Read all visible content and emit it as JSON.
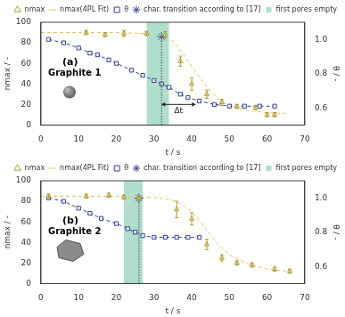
{
  "chart_data": [
    {
      "type": "scatter",
      "title": "(a)",
      "subtitle": "Graphite 1",
      "x_label": "t / s",
      "y_label": "nmax / -",
      "y2_label": "θ / -",
      "xlim": [
        0,
        70
      ],
      "xticks": [
        0,
        10,
        20,
        30,
        40,
        50,
        60,
        70
      ],
      "ylim": [
        0,
        100
      ],
      "yticks": [
        0,
        20,
        40,
        60,
        80,
        100
      ],
      "y2lim": [
        0.5,
        1.1
      ],
      "y2ticks": [
        0.6,
        0.8,
        {
          "value": 1,
          "label": "1.0"
        }
      ],
      "grid": false,
      "legend": "upper right",
      "series": [
        {
          "name": "nmax",
          "color": "#b09a30",
          "marker": "triangle",
          "line_style": "none",
          "x": [
            12,
            17,
            22,
            28,
            33,
            37,
            40,
            44,
            48,
            52,
            57,
            60,
            62
          ],
          "values": [
            90,
            88,
            89,
            89,
            88,
            62,
            40,
            30,
            22,
            18,
            17,
            10,
            10
          ],
          "errors": [
            2,
            2,
            3,
            2,
            3,
            5,
            6,
            4,
            3,
            2,
            2,
            2,
            2
          ]
        },
        {
          "name": "nmax(4PL Fit)",
          "color": "#e2c060",
          "marker": "none",
          "line_style": "dashed",
          "x": [
            0,
            10,
            20,
            28,
            32,
            35,
            38,
            41,
            44,
            47,
            50,
            55,
            60,
            65
          ],
          "values": [
            90,
            90,
            90,
            89,
            87,
            82,
            68,
            52,
            37,
            26,
            18,
            14,
            12,
            11
          ]
        },
        {
          "name": "θ",
          "color": "#34428e",
          "marker": "square",
          "line_style": "dashed",
          "axis": "y2",
          "x": [
            2,
            6,
            10,
            13,
            15,
            18,
            20,
            24,
            27,
            30,
            32,
            34,
            37,
            39,
            42,
            46,
            50,
            54,
            58,
            62
          ],
          "values": [
            1.0,
            0.98,
            0.95,
            0.92,
            0.91,
            0.88,
            0.86,
            0.82,
            0.79,
            0.76,
            0.74,
            0.72,
            0.68,
            0.66,
            0.64,
            0.62,
            0.61,
            0.61,
            0.61,
            0.61
          ]
        },
        {
          "name": "first pores empty",
          "color": "#8fd0b8",
          "type": "band",
          "x": [
            28,
            34
          ]
        },
        {
          "name": "char. transition according to [17]",
          "color": "#34428e",
          "marker": "star",
          "line_style": "dotted",
          "x": [
            32
          ],
          "values": [
            86
          ]
        }
      ],
      "annotations": [
        {
          "text": "Δt",
          "x": [
            32,
            41
          ],
          "y": 20
        }
      ]
    },
    {
      "type": "scatter",
      "title": "(b)",
      "subtitle": "Graphite 2",
      "x_label": "t / s",
      "y_label": "nmax / -",
      "y2_label": "θ / -",
      "xlim": [
        0,
        70
      ],
      "xticks": [
        0,
        10,
        20,
        30,
        40,
        50,
        60,
        70
      ],
      "ylim": [
        0,
        100
      ],
      "yticks": [
        0,
        20,
        40,
        60,
        80,
        100
      ],
      "y2lim": [
        0.5,
        1.1
      ],
      "y2ticks": [
        0.6,
        0.8,
        {
          "value": 1,
          "label": "1.0"
        }
      ],
      "grid": false,
      "legend": "upper right",
      "series": [
        {
          "name": "nmax",
          "color": "#b09a30",
          "marker": "triangle",
          "line_style": "none",
          "x": [
            2,
            12,
            18,
            22,
            26,
            36,
            40,
            44,
            48,
            52,
            56,
            62,
            66
          ],
          "values": [
            85,
            85,
            86,
            84,
            83,
            72,
            63,
            38,
            25,
            20,
            18,
            14,
            12
          ],
          "errors": [
            2,
            2,
            2,
            2,
            2,
            8,
            6,
            5,
            3,
            2,
            2,
            2,
            2
          ]
        },
        {
          "name": "nmax(4PL Fit)",
          "color": "#e2c060",
          "marker": "none",
          "line_style": "dashed",
          "x": [
            0,
            10,
            20,
            30,
            35,
            38,
            41,
            44,
            47,
            50,
            55,
            60,
            65
          ],
          "values": [
            85,
            85,
            85,
            84,
            81,
            76,
            66,
            52,
            38,
            28,
            19,
            14,
            12
          ]
        },
        {
          "name": "θ",
          "color": "#34428e",
          "marker": "square",
          "line_style": "dashed",
          "axis": "y2",
          "x": [
            2,
            6,
            10,
            13,
            16,
            20,
            23,
            25,
            27,
            30,
            33,
            36,
            39,
            42
          ],
          "values": [
            1.0,
            0.98,
            0.94,
            0.91,
            0.88,
            0.85,
            0.82,
            0.8,
            0.78,
            0.77,
            0.77,
            0.77,
            0.77,
            0.77
          ]
        },
        {
          "name": "first pores empty",
          "color": "#8fd0b8",
          "type": "band",
          "x": [
            22,
            27
          ]
        },
        {
          "name": "char. transition according to [17]",
          "color": "#34428e",
          "marker": "star",
          "line_style": "dotted",
          "x": [
            26
          ],
          "values": [
            83
          ]
        }
      ]
    }
  ]
}
